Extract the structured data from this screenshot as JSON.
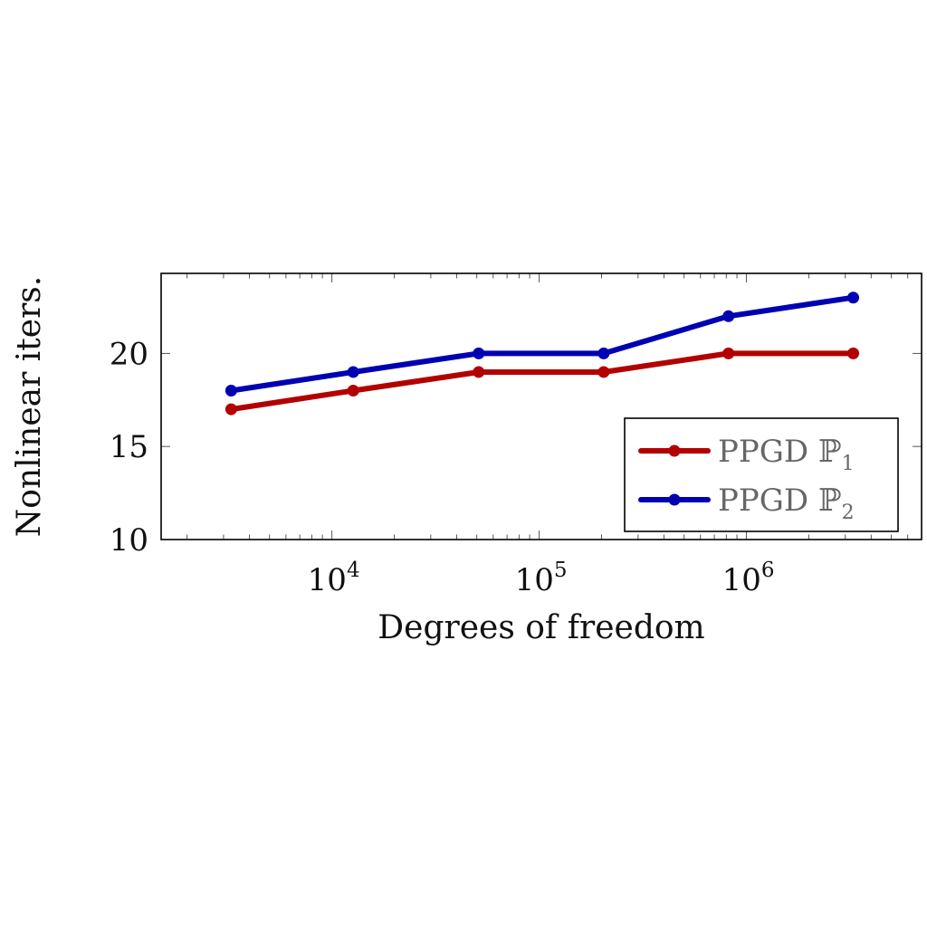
{
  "chart_data": {
    "type": "line",
    "xlabel": "Degrees of freedom",
    "ylabel": "Nonlinear iters.",
    "xscale": "log",
    "xlim": [
      1500,
      7000000
    ],
    "ylim": [
      10,
      24.3
    ],
    "yticks": [
      10,
      15,
      20
    ],
    "xticks": [
      {
        "value": 10000,
        "base": "10",
        "exp": "4"
      },
      {
        "value": 100000,
        "base": "10",
        "exp": "5"
      },
      {
        "value": 1000000,
        "base": "10",
        "exp": "6"
      }
    ],
    "grid": false,
    "legend_position": "bottom-right",
    "series": [
      {
        "name": "PPGD ℙ1",
        "legend_main": "PPGD ℙ",
        "legend_sub": "1",
        "color": "#b30000",
        "x": [
          3267,
          12675,
          51075,
          204825,
          819225,
          3276825
        ],
        "values": [
          17,
          18,
          19,
          19,
          20,
          20
        ]
      },
      {
        "name": "PPGD ℙ2",
        "legend_main": "PPGD ℙ",
        "legend_sub": "2",
        "color": "#0000b3",
        "x": [
          3267,
          12675,
          51075,
          204825,
          819225,
          3276825
        ],
        "values": [
          18,
          19,
          20,
          20,
          22,
          23
        ]
      }
    ]
  }
}
